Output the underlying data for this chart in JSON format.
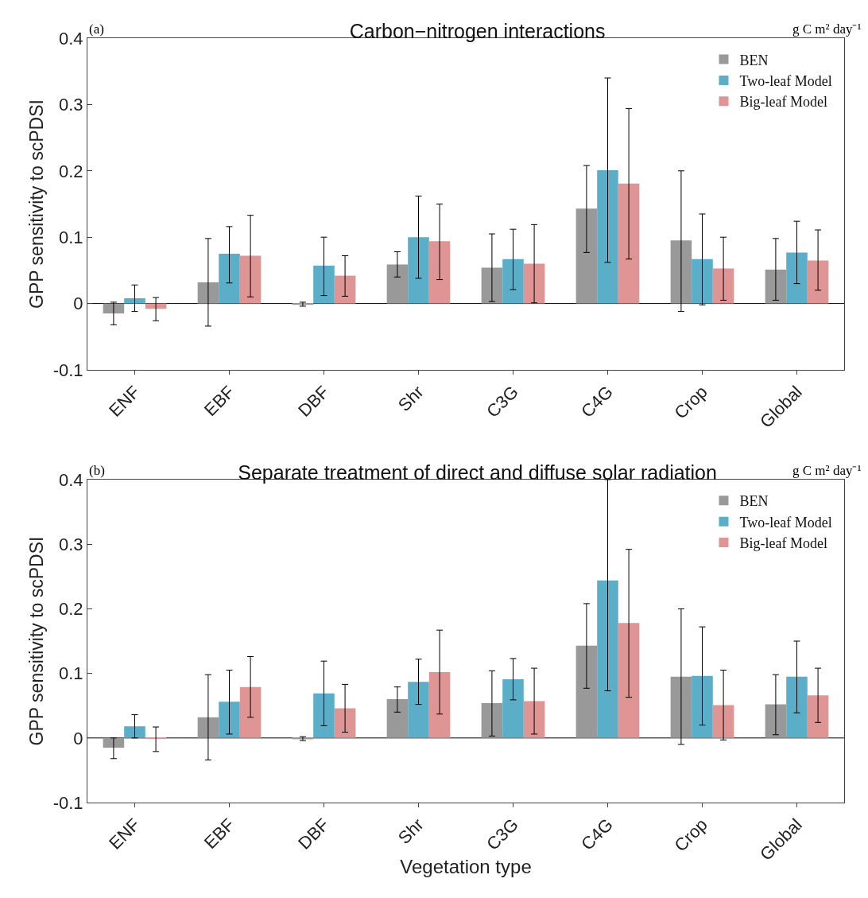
{
  "chart_data": [
    {
      "type": "bar",
      "title": "Carbon−nitrogen interactions",
      "ylabel": "GPP sensitivity to scPDSI",
      "annotations": [
        "(a)",
        "g C m² day⁻¹"
      ],
      "categories": [
        "ENF",
        "EBF",
        "DBF",
        "Shr",
        "C3G",
        "C4G",
        "Crop",
        "Global"
      ],
      "series": [
        {
          "name": "BEN",
          "color": "#999999",
          "values": [
            -0.015,
            0.032,
            -0.002,
            0.059,
            0.054,
            0.143,
            0.095,
            0.051
          ],
          "errors": [
            [
              -0.032,
              0.002
            ],
            [
              -0.034,
              0.098
            ],
            [
              -0.004,
              0.002
            ],
            [
              0.04,
              0.078
            ],
            [
              0.003,
              0.105
            ],
            [
              0.077,
              0.208
            ],
            [
              -0.012,
              0.2
            ],
            [
              0.005,
              0.098
            ]
          ]
        },
        {
          "name": "Two-leaf Model",
          "color": "#5aaec8",
          "values": [
            0.008,
            0.075,
            0.057,
            0.1,
            0.067,
            0.201,
            0.067,
            0.077
          ],
          "errors": [
            [
              -0.012,
              0.028
            ],
            [
              0.031,
              0.116
            ],
            [
              0.012,
              0.1
            ],
            [
              0.038,
              0.162
            ],
            [
              0.021,
              0.112
            ],
            [
              0.062,
              0.34
            ],
            [
              -0.002,
              0.135
            ],
            [
              0.03,
              0.124
            ]
          ]
        },
        {
          "name": "Big-leaf Model",
          "color": "#e09595",
          "values": [
            -0.008,
            0.072,
            0.042,
            0.094,
            0.06,
            0.181,
            0.053,
            0.065
          ],
          "errors": [
            [
              -0.026,
              0.009
            ],
            [
              0.01,
              0.133
            ],
            [
              0.011,
              0.072
            ],
            [
              0.036,
              0.15
            ],
            [
              0.001,
              0.119
            ],
            [
              0.067,
              0.294
            ],
            [
              0.005,
              0.1
            ],
            [
              0.02,
              0.111
            ]
          ]
        }
      ],
      "ylim": [
        -0.1,
        0.4
      ],
      "yticks": [
        -0.1,
        0,
        0.1,
        0.2,
        0.3,
        0.4
      ],
      "ref_lines": [
        {
          "axis": "y",
          "value": 0,
          "color": "#000000"
        }
      ],
      "legend": "top right"
    },
    {
      "type": "bar",
      "title": "Separate treatment of direct and diffuse solar radiation",
      "xlabel": "Vegetation type",
      "ylabel": "GPP sensitivity to scPDSI",
      "annotations": [
        "(b)",
        "g C m² day⁻¹"
      ],
      "categories": [
        "ENF",
        "EBF",
        "DBF",
        "Shr",
        "C3G",
        "C4G",
        "Crop",
        "Global"
      ],
      "series": [
        {
          "name": "BEN",
          "color": "#999999",
          "values": [
            -0.015,
            0.032,
            -0.002,
            0.06,
            0.054,
            0.143,
            0.095,
            0.052
          ],
          "errors": [
            [
              -0.032,
              0.0
            ],
            [
              -0.034,
              0.098
            ],
            [
              -0.004,
              0.002
            ],
            [
              0.04,
              0.079
            ],
            [
              0.003,
              0.104
            ],
            [
              0.077,
              0.208
            ],
            [
              -0.01,
              0.2
            ],
            [
              0.005,
              0.098
            ]
          ]
        },
        {
          "name": "Two-leaf Model",
          "color": "#5aaec8",
          "values": [
            0.018,
            0.056,
            0.069,
            0.087,
            0.091,
            0.244,
            0.096,
            0.095
          ],
          "errors": [
            [
              0.0,
              0.036
            ],
            [
              0.006,
              0.105
            ],
            [
              0.019,
              0.119
            ],
            [
              0.052,
              0.122
            ],
            [
              0.059,
              0.123
            ],
            [
              0.073,
              0.4
            ],
            [
              0.02,
              0.172
            ],
            [
              0.039,
              0.15
            ]
          ]
        },
        {
          "name": "Big-leaf Model",
          "color": "#e09595",
          "values": [
            -0.001,
            0.079,
            0.046,
            0.102,
            0.057,
            0.178,
            0.051,
            0.066
          ],
          "errors": [
            [
              -0.021,
              0.017
            ],
            [
              0.032,
              0.126
            ],
            [
              0.009,
              0.083
            ],
            [
              0.037,
              0.167
            ],
            [
              0.006,
              0.108
            ],
            [
              0.063,
              0.292
            ],
            [
              -0.003,
              0.105
            ],
            [
              0.024,
              0.108
            ]
          ]
        }
      ],
      "ylim": [
        -0.1,
        0.4
      ],
      "yticks": [
        -0.1,
        0,
        0.1,
        0.2,
        0.3,
        0.4
      ],
      "ref_lines": [
        {
          "axis": "y",
          "value": 0,
          "color": "#000000"
        }
      ],
      "legend": "top right"
    }
  ]
}
